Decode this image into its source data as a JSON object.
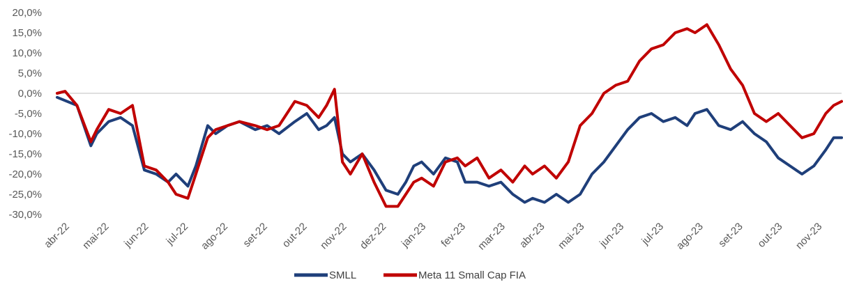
{
  "chart_data": {
    "type": "line",
    "title": "",
    "xlabel": "",
    "ylabel": "",
    "ylim": [
      -30,
      20
    ],
    "y_ticks": [
      "20,0%",
      "15,0%",
      "10,0%",
      "5,0%",
      "0,0%",
      "-5,0%",
      "-10,0%",
      "-15,0%",
      "-20,0%",
      "-25,0%",
      "-30,0%"
    ],
    "y_tick_values": [
      20,
      15,
      10,
      5,
      0,
      -5,
      -10,
      -15,
      -20,
      -25,
      -30
    ],
    "x_labels": [
      "abr-22",
      "mai-22",
      "jun-22",
      "jul-22",
      "ago-22",
      "set-22",
      "out-22",
      "nov-22",
      "dez-22",
      "jan-23",
      "fev-23",
      "mar-23",
      "abr-23",
      "mai-23",
      "jun-23",
      "jul-23",
      "ago-23",
      "set-23",
      "out-23",
      "nov-23"
    ],
    "x_label_positions": [
      0,
      1,
      2,
      3,
      4,
      5,
      6,
      7,
      8,
      9,
      10,
      11,
      12,
      13,
      14,
      15,
      16,
      17,
      18,
      19
    ],
    "xlim": [
      0,
      19.8
    ],
    "legend_position": "bottom",
    "zero_line": true,
    "series": [
      {
        "name": "SMLL",
        "color": "#1F3F7A",
        "x": [
          0,
          0.5,
          0.85,
          1.0,
          1.3,
          1.6,
          1.9,
          2.2,
          2.5,
          2.8,
          3.0,
          3.3,
          3.5,
          3.8,
          4.0,
          4.3,
          4.6,
          5.0,
          5.3,
          5.6,
          6.0,
          6.3,
          6.6,
          6.8,
          7.0,
          7.2,
          7.4,
          7.7,
          8.0,
          8.3,
          8.6,
          8.8,
          9.0,
          9.2,
          9.5,
          9.8,
          10.1,
          10.3,
          10.6,
          10.9,
          11.2,
          11.5,
          11.8,
          12.0,
          12.3,
          12.6,
          12.9,
          13.2,
          13.5,
          13.8,
          14.1,
          14.4,
          14.7,
          15.0,
          15.3,
          15.6,
          15.9,
          16.1,
          16.4,
          16.7,
          17.0,
          17.3,
          17.6,
          17.9,
          18.2,
          18.5,
          18.8,
          19.1,
          19.4,
          19.6,
          19.8
        ],
        "values": [
          -1,
          -3,
          -13,
          -10,
          -7,
          -6,
          -8,
          -19,
          -20,
          -22,
          -20,
          -23,
          -18,
          -8,
          -10,
          -8,
          -7,
          -9,
          -8,
          -10,
          -7,
          -5,
          -9,
          -8,
          -6,
          -15,
          -17,
          -15,
          -19,
          -24,
          -25,
          -22,
          -18,
          -17,
          -20,
          -16,
          -17,
          -22,
          -22,
          -23,
          -22,
          -25,
          -27,
          -26,
          -27,
          -25,
          -27,
          -25,
          -20,
          -17,
          -13,
          -9,
          -6,
          -5,
          -7,
          -6,
          -8,
          -5,
          -4,
          -8,
          -9,
          -7,
          -10,
          -12,
          -16,
          -18,
          -20,
          -18,
          -14,
          -11,
          -11
        ]
      },
      {
        "name": "Meta 11 Small Cap FIA",
        "color": "#C00000",
        "x": [
          0,
          0.2,
          0.5,
          0.85,
          1.0,
          1.3,
          1.6,
          1.9,
          2.2,
          2.5,
          2.8,
          3.0,
          3.3,
          3.5,
          3.8,
          4.0,
          4.3,
          4.6,
          5.0,
          5.3,
          5.6,
          6.0,
          6.3,
          6.6,
          6.8,
          7.0,
          7.2,
          7.4,
          7.7,
          8.0,
          8.3,
          8.6,
          8.8,
          9.0,
          9.2,
          9.5,
          9.8,
          10.1,
          10.3,
          10.6,
          10.9,
          11.2,
          11.5,
          11.8,
          12.0,
          12.3,
          12.6,
          12.9,
          13.2,
          13.5,
          13.8,
          14.1,
          14.4,
          14.7,
          15.0,
          15.3,
          15.6,
          15.9,
          16.1,
          16.4,
          16.7,
          17.0,
          17.3,
          17.6,
          17.9,
          18.2,
          18.5,
          18.8,
          19.1,
          19.4,
          19.6,
          19.8
        ],
        "values": [
          0,
          0.5,
          -3,
          -12,
          -9,
          -4,
          -5,
          -3,
          -18,
          -19,
          -22,
          -25,
          -26,
          -20,
          -11,
          -9,
          -8,
          -7,
          -8,
          -9,
          -8,
          -2,
          -3,
          -6,
          -3,
          1,
          -17,
          -20,
          -15,
          -22,
          -28,
          -28,
          -25,
          -22,
          -21,
          -23,
          -17,
          -16,
          -18,
          -16,
          -21,
          -19,
          -22,
          -18,
          -20,
          -18,
          -21,
          -17,
          -8,
          -5,
          0,
          2,
          3,
          8,
          11,
          12,
          15,
          16,
          15,
          17,
          12,
          6,
          2,
          -5,
          -7,
          -5,
          -8,
          -11,
          -10,
          -5,
          -3,
          -2
        ]
      }
    ]
  }
}
